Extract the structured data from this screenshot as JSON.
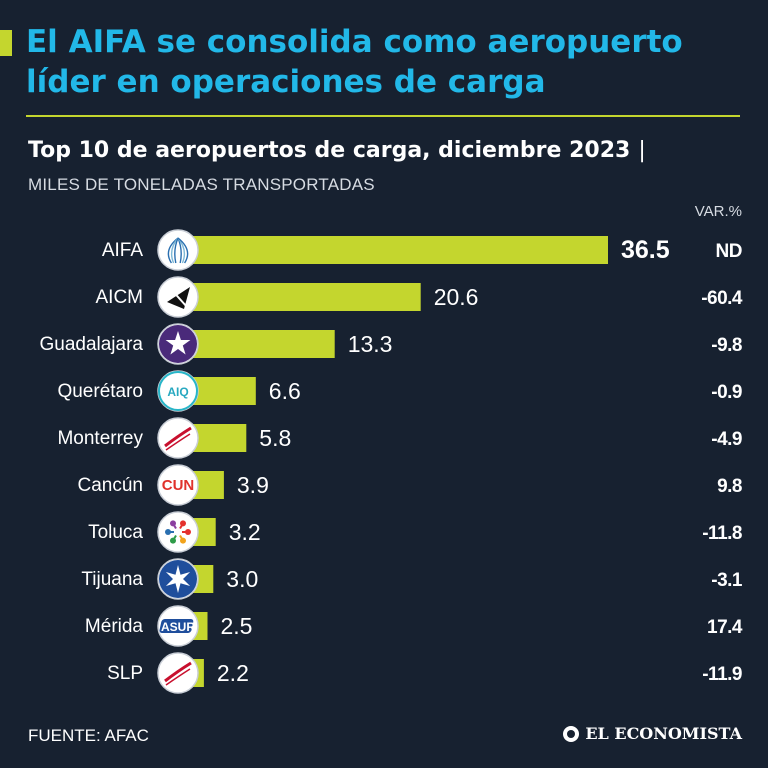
{
  "headline": "El AIFA se consolida como aeropuerto líder en operaciones de carga",
  "subtitle": "Top 10 de aeropuertos de carga, diciembre 2023",
  "subtitle_separator": "|",
  "units_label": "MILES DE TONELADAS TRANSPORTADAS",
  "variation_header": "VAR.%",
  "source": "FUENTE: AFAC",
  "brand": "EL ECONOMISTA",
  "colors": {
    "background": "#172130",
    "bar": "#c4d62e",
    "headline": "#22b8e8",
    "text": "#ffffff"
  },
  "chart_data": {
    "type": "bar",
    "orientation": "horizontal",
    "title": "Top 10 de aeropuertos de carga, diciembre 2023",
    "categories": [
      "AIFA",
      "AICM",
      "Guadalajara",
      "Querétaro",
      "Monterrey",
      "Cancún",
      "Toluca",
      "Tijuana",
      "Mérida",
      "SLP"
    ],
    "values": [
      36.5,
      20.6,
      13.3,
      6.6,
      5.8,
      3.9,
      3.2,
      3.0,
      2.5,
      2.2
    ],
    "value_labels": [
      "36.5",
      "20.6",
      "13.3",
      "6.6",
      "5.8",
      "3.9",
      "3.2",
      "3.0",
      "2.5",
      "2.2"
    ],
    "variation": [
      "ND",
      "-60.4",
      "-9.8",
      "-0.9",
      "-4.9",
      "9.8",
      "-11.8",
      "-3.1",
      "17.4",
      "-11.9"
    ],
    "icons": [
      "aifa-logo-icon",
      "aicm-logo-icon",
      "guadalajara-logo-icon",
      "queretaro-logo-icon",
      "monterrey-logo-icon",
      "cancun-logo-icon",
      "toluca-logo-icon",
      "tijuana-logo-icon",
      "merida-logo-icon",
      "slp-logo-icon"
    ],
    "logo_text": [
      "",
      "",
      "",
      "AIQ",
      "",
      "CUN",
      "",
      "",
      "ASUR",
      ""
    ],
    "highlight": "AIFA",
    "xlim": [
      0,
      36.5
    ],
    "grid": false,
    "legend": "none"
  }
}
